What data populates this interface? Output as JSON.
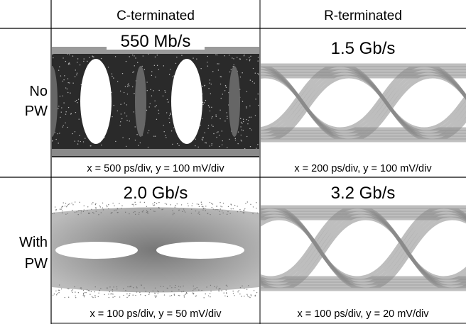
{
  "table": {
    "columns": [
      "C-terminated",
      "R-terminated"
    ],
    "rows": [
      {
        "label": [
          "No",
          "PW"
        ],
        "cells": [
          {
            "rate": "550 Mb/s",
            "scale": "x = 500 ps/div, y = 100 mV/div"
          },
          {
            "rate": "1.5 Gb/s",
            "scale": "x = 200 ps/div, y = 100 mV/div"
          }
        ]
      },
      {
        "label": [
          "With",
          "PW"
        ],
        "cells": [
          {
            "rate": "2.0 Gb/s",
            "scale": "x = 100 ps/div, y = 50 mV/div"
          },
          {
            "rate": "3.2 Gb/s",
            "scale": "x = 100 ps/div, y = 20 mV/div"
          }
        ]
      }
    ]
  }
}
